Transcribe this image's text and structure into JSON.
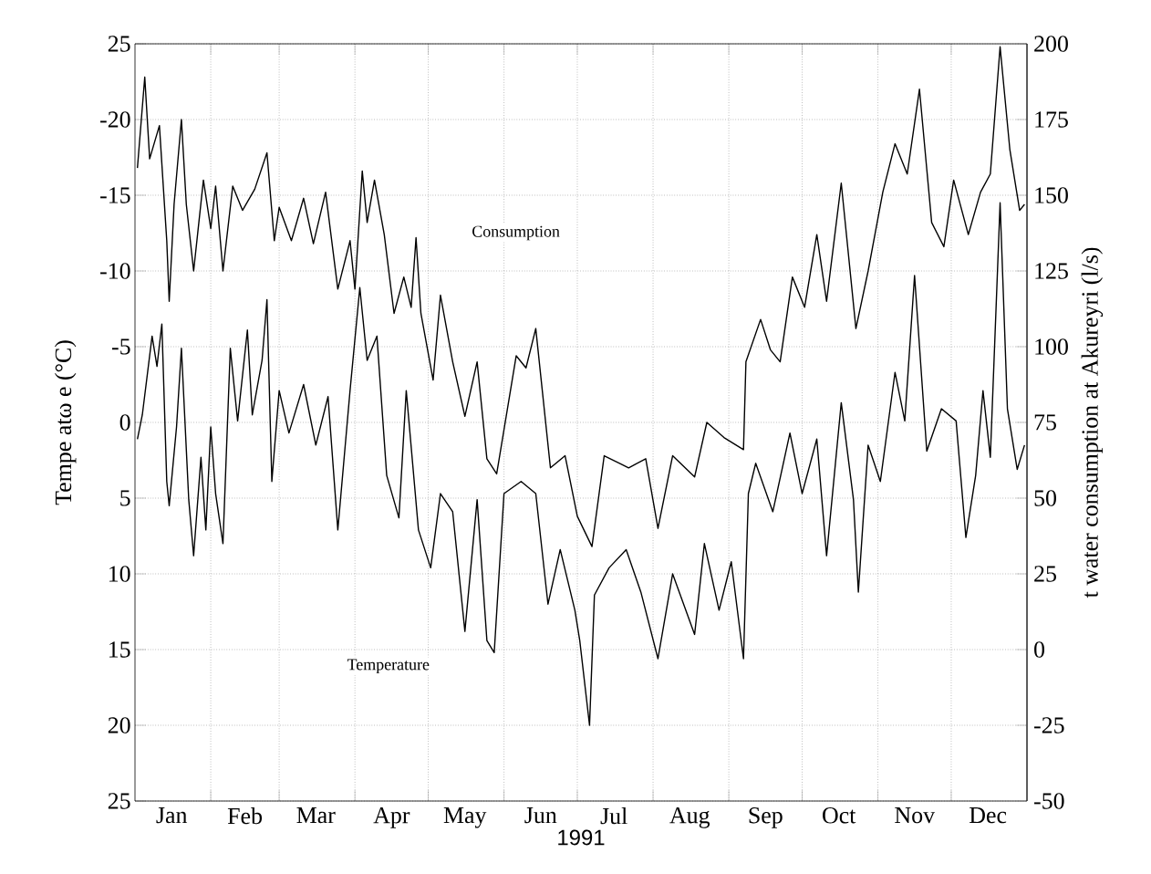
{
  "chart_data": {
    "type": "line",
    "xlabel": "1991",
    "ylabel": "Tempe atω e (°C)",
    "y2label": "t water consumption at Akureyri (l/s)",
    "xlim": [
      "1991-01-01",
      "1992-01-01"
    ],
    "xticks": [
      {
        "value": "1991-02-01",
        "label": null
      },
      {
        "value": "1991-03-01",
        "label": null
      },
      {
        "value": "1991-04-01",
        "label": null
      },
      {
        "value": "1991-05-01",
        "label": null
      },
      {
        "value": "1991-06-01",
        "label": null
      },
      {
        "value": "1991-07-01",
        "label": null
      },
      {
        "value": "1991-08-01",
        "label": null
      },
      {
        "value": "1991-09-01",
        "label": null
      },
      {
        "value": "1991-10-01",
        "label": null
      },
      {
        "value": "1991-11-01",
        "label": null
      },
      {
        "value": "1991-12-01",
        "label": null
      },
      {
        "value": "1991-01-16",
        "label": "Jan"
      },
      {
        "value": "1991-02-15",
        "label": "Feb"
      },
      {
        "value": "1991-03-16",
        "label": "Mar"
      },
      {
        "value": "1991-04-16",
        "label": "Apr"
      },
      {
        "value": "1991-05-16",
        "label": "May"
      },
      {
        "value": "1991-06-16",
        "label": "Jun"
      },
      {
        "value": "1991-07-16",
        "label": "Jul"
      },
      {
        "value": "1991-08-16",
        "label": "Aug"
      },
      {
        "value": "1991-09-16",
        "label": "Sep"
      },
      {
        "value": "1991-10-16",
        "label": "Oct"
      },
      {
        "value": "1991-11-16",
        "label": "Nov"
      },
      {
        "value": "1991-12-16",
        "label": "Dec"
      }
    ],
    "ylim": [
      25,
      -25
    ],
    "yticks": [
      {
        "value": -25,
        "label": "25"
      },
      -20,
      -15,
      -10,
      -5,
      0,
      5,
      10,
      15,
      20,
      25
    ],
    "y2lim": [
      -50,
      200
    ],
    "y2ticks": [
      -50,
      -25,
      0,
      25,
      50,
      75,
      100,
      125,
      150,
      175,
      200
    ],
    "grid": true,
    "annotations": [
      "Consumption",
      "Temperature"
    ],
    "series": [
      {
        "color": "#000000",
        "axis": "y2",
        "x": [
          "1991-01-02",
          "1991-01-05",
          "1991-01-07",
          "1991-01-11",
          "1991-01-14",
          "1991-01-15",
          "1991-01-17",
          "1991-01-20",
          "1991-01-22",
          "1991-01-25",
          "1991-01-29",
          "1991-02-01",
          "1991-02-03",
          "1991-02-06",
          "1991-02-10",
          "1991-02-14",
          "1991-02-19",
          "1991-02-24",
          "1991-02-27",
          "1991-03-01",
          "1991-03-06",
          "1991-03-11",
          "1991-03-15",
          "1991-03-20",
          "1991-03-25",
          "1991-03-30",
          "1991-04-01",
          "1991-04-04",
          "1991-04-06",
          "1991-04-09",
          "1991-04-13",
          "1991-04-17",
          "1991-04-21",
          "1991-04-24",
          "1991-04-26",
          "1991-04-28",
          "1991-05-03",
          "1991-05-06",
          "1991-05-11",
          "1991-05-16",
          "1991-05-21",
          "1991-05-25",
          "1991-05-29",
          "1991-06-06",
          "1991-06-10",
          "1991-06-14",
          "1991-06-20",
          "1991-06-26",
          "1991-07-01",
          "1991-07-07",
          "1991-07-12",
          "1991-07-22",
          "1991-07-29",
          "1991-08-03",
          "1991-08-09",
          "1991-08-18",
          "1991-08-23",
          "1991-08-30",
          "1991-09-07",
          "1991-09-08",
          "1991-09-14",
          "1991-09-18",
          "1991-09-22",
          "1991-09-27",
          "1991-10-02",
          "1991-10-07",
          "1991-10-11",
          "1991-10-17",
          "1991-10-23",
          "1991-10-28",
          "1991-11-03",
          "1991-11-08",
          "1991-11-13",
          "1991-11-18",
          "1991-11-23",
          "1991-11-28",
          "1991-12-02",
          "1991-12-08",
          "1991-12-13",
          "1991-12-17",
          "1991-12-21",
          "1991-12-25",
          "1991-12-29",
          "1991-12-31"
        ],
        "values": [
          159,
          189,
          162,
          173,
          135,
          115,
          147,
          175,
          147,
          125,
          155,
          139,
          153,
          125,
          153,
          145,
          152,
          164,
          135,
          146,
          135,
          149,
          134,
          151,
          119,
          135,
          119,
          158,
          141,
          155,
          137,
          111,
          123,
          113,
          136,
          111,
          89,
          117,
          95,
          77,
          95,
          63,
          58,
          97,
          93,
          106,
          60,
          64,
          44,
          34,
          64,
          60,
          63,
          40,
          64,
          57,
          75,
          70,
          66,
          95,
          109,
          99,
          95,
          123,
          113,
          137,
          115,
          154,
          106,
          125,
          151,
          167,
          157,
          185,
          141,
          133,
          155,
          137,
          151,
          157,
          199,
          165,
          145,
          147
        ]
      },
      {
        "color": "#000000",
        "axis": "y",
        "x": [
          "1991-01-02",
          "1991-01-04",
          "1991-01-08",
          "1991-01-10",
          "1991-01-12",
          "1991-01-14",
          "1991-01-15",
          "1991-01-18",
          "1991-01-20",
          "1991-01-23",
          "1991-01-25",
          "1991-01-28",
          "1991-01-30",
          "1991-02-01",
          "1991-02-03",
          "1991-02-06",
          "1991-02-09",
          "1991-02-12",
          "1991-02-16",
          "1991-02-18",
          "1991-02-22",
          "1991-02-24",
          "1991-02-26",
          "1991-03-01",
          "1991-03-05",
          "1991-03-11",
          "1991-03-16",
          "1991-03-21",
          "1991-03-25",
          "1991-03-30",
          "1991-04-03",
          "1991-04-06",
          "1991-04-10",
          "1991-04-14",
          "1991-04-19",
          "1991-04-22",
          "1991-04-27",
          "1991-05-02",
          "1991-05-06",
          "1991-05-11",
          "1991-05-16",
          "1991-05-21",
          "1991-05-25",
          "1991-05-28",
          "1991-06-01",
          "1991-06-08",
          "1991-06-14",
          "1991-06-19",
          "1991-06-24",
          "1991-06-30",
          "1991-07-02",
          "1991-07-06",
          "1991-07-08",
          "1991-07-14",
          "1991-07-21",
          "1991-07-27",
          "1991-08-03",
          "1991-08-09",
          "1991-08-18",
          "1991-08-22",
          "1991-08-28",
          "1991-09-02",
          "1991-09-07",
          "1991-09-09",
          "1991-09-12",
          "1991-09-19",
          "1991-09-26",
          "1991-10-01",
          "1991-10-07",
          "1991-10-11",
          "1991-10-17",
          "1991-10-22",
          "1991-10-24",
          "1991-10-28",
          "1991-11-02",
          "1991-11-08",
          "1991-11-12",
          "1991-11-16",
          "1991-11-21",
          "1991-11-27",
          "1991-12-03",
          "1991-12-07",
          "1991-12-11",
          "1991-12-14",
          "1991-12-17",
          "1991-12-21",
          "1991-12-24",
          "1991-12-28",
          "1991-12-31"
        ],
        "values": [
          1.1,
          -0.5,
          -5.7,
          -3.7,
          -6.5,
          3.9,
          5.5,
          0.3,
          -4.9,
          5.1,
          8.8,
          2.3,
          7.1,
          0.3,
          4.7,
          8,
          -4.9,
          -0.1,
          -6.1,
          -0.5,
          -4.1,
          -8.1,
          3.9,
          -2.1,
          0.7,
          -2.5,
          1.5,
          -1.7,
          7.1,
          -2.1,
          -8.9,
          -4.1,
          -5.7,
          3.5,
          6.3,
          -2.1,
          7.1,
          9.6,
          4.7,
          5.9,
          13.8,
          5.1,
          14.4,
          15.2,
          4.7,
          3.9,
          4.7,
          12,
          8.4,
          12.4,
          14.4,
          20,
          11.4,
          9.6,
          8.4,
          11.2,
          15.6,
          10,
          14,
          8,
          12.4,
          9.2,
          15.6,
          4.7,
          2.7,
          5.9,
          0.7,
          4.7,
          1.1,
          8.8,
          -1.3,
          5.1,
          11.2,
          1.5,
          3.9,
          -3.3,
          -0.1,
          -9.7,
          1.9,
          -0.9,
          -0.1,
          7.6,
          3.5,
          -2.1,
          2.3,
          -14.5,
          -0.9,
          3.1,
          1.5
        ]
      }
    ]
  }
}
